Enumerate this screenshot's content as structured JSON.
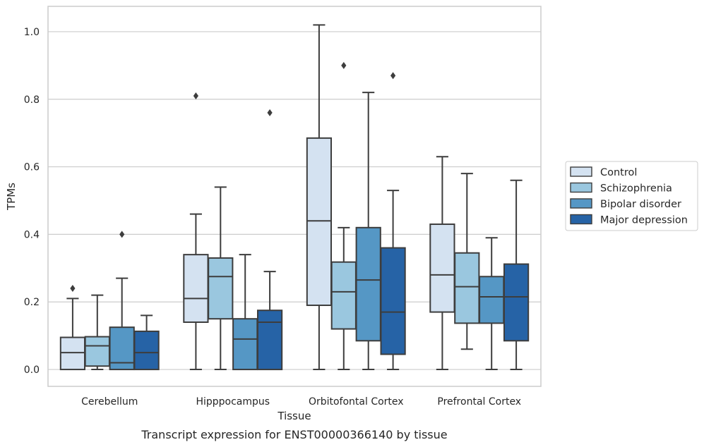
{
  "chart_data": {
    "type": "box",
    "caption": "Transcript expression for ENST00000366140 by tissue",
    "xlabel": "Tissue",
    "ylabel": "TPMs",
    "ylim": [
      -0.05,
      1.075
    ],
    "yticks": [
      0.0,
      0.2,
      0.4,
      0.6,
      0.8,
      1.0
    ],
    "ytick_labels": [
      "0.0",
      "0.2",
      "0.4",
      "0.6",
      "0.8",
      "1.0"
    ],
    "grid": true,
    "legend_position": "right",
    "categories": [
      "Cerebellum",
      "Hipppocampus",
      "Orbitofontal Cortex",
      "Prefrontal Cortex"
    ],
    "series": [
      {
        "name": "Control",
        "color": "#d4e2f1",
        "boxes": [
          {
            "whislo": 0.0,
            "q1": 0.0,
            "med": 0.05,
            "q3": 0.095,
            "whishi": 0.21,
            "fliers": [
              0.24
            ]
          },
          {
            "whislo": 0.0,
            "q1": 0.14,
            "med": 0.21,
            "q3": 0.34,
            "whishi": 0.46,
            "fliers": [
              0.81
            ]
          },
          {
            "whislo": 0.0,
            "q1": 0.19,
            "med": 0.44,
            "q3": 0.685,
            "whishi": 1.02,
            "fliers": []
          },
          {
            "whislo": 0.0,
            "q1": 0.17,
            "med": 0.28,
            "q3": 0.43,
            "whishi": 0.63,
            "fliers": []
          }
        ]
      },
      {
        "name": "Schizophrenia",
        "color": "#9ac7df",
        "boxes": [
          {
            "whislo": 0.0,
            "q1": 0.01,
            "med": 0.07,
            "q3": 0.097,
            "whishi": 0.22,
            "fliers": []
          },
          {
            "whislo": 0.0,
            "q1": 0.15,
            "med": 0.275,
            "q3": 0.33,
            "whishi": 0.54,
            "fliers": []
          },
          {
            "whislo": 0.0,
            "q1": 0.12,
            "med": 0.23,
            "q3": 0.318,
            "whishi": 0.42,
            "fliers": [
              0.9
            ]
          },
          {
            "whislo": 0.06,
            "q1": 0.137,
            "med": 0.245,
            "q3": 0.345,
            "whishi": 0.58,
            "fliers": []
          }
        ]
      },
      {
        "name": "Bipolar disorder",
        "color": "#5597c5",
        "boxes": [
          {
            "whislo": 0.0,
            "q1": 0.0,
            "med": 0.02,
            "q3": 0.125,
            "whishi": 0.27,
            "fliers": [
              0.4
            ]
          },
          {
            "whislo": 0.0,
            "q1": 0.0,
            "med": 0.09,
            "q3": 0.15,
            "whishi": 0.34,
            "fliers": []
          },
          {
            "whislo": 0.0,
            "q1": 0.085,
            "med": 0.265,
            "q3": 0.42,
            "whishi": 0.82,
            "fliers": []
          },
          {
            "whislo": 0.0,
            "q1": 0.137,
            "med": 0.215,
            "q3": 0.275,
            "whishi": 0.39,
            "fliers": []
          }
        ]
      },
      {
        "name": "Major depression",
        "color": "#2663a6",
        "boxes": [
          {
            "whislo": 0.0,
            "q1": 0.0,
            "med": 0.05,
            "q3": 0.113,
            "whishi": 0.16,
            "fliers": []
          },
          {
            "whislo": 0.0,
            "q1": 0.0,
            "med": 0.14,
            "q3": 0.175,
            "whishi": 0.29,
            "fliers": [
              0.76
            ]
          },
          {
            "whislo": 0.0,
            "q1": 0.045,
            "med": 0.17,
            "q3": 0.36,
            "whishi": 0.53,
            "fliers": [
              0.87
            ]
          },
          {
            "whislo": 0.0,
            "q1": 0.085,
            "med": 0.215,
            "q3": 0.312,
            "whishi": 0.56,
            "fliers": []
          }
        ]
      }
    ]
  }
}
